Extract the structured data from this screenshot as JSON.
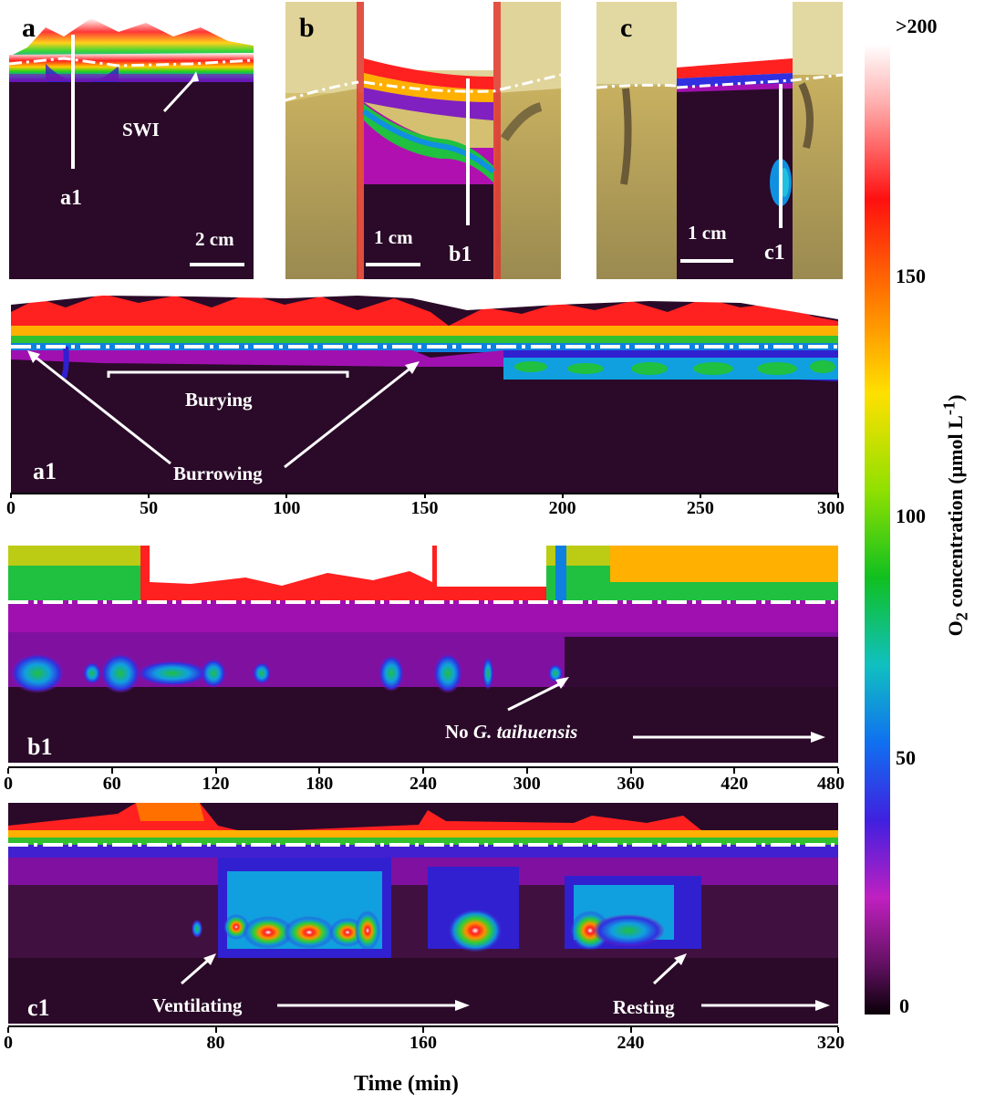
{
  "panels": {
    "a": {
      "letter": "a",
      "swi_label": "SWI",
      "profile_label": "a1",
      "scale": "2 cm"
    },
    "b": {
      "letter": "b",
      "profile_label": "b1",
      "scale": "1 cm"
    },
    "c": {
      "letter": "c",
      "profile_label": "c1",
      "scale": "1 cm"
    }
  },
  "colorbar": {
    "title_pre": "O",
    "title_sub": "2",
    "title_post": " concentration (μmol L",
    "title_sup": "-1",
    "title_end": ")",
    "ticks": [
      ">200",
      "150",
      "100",
      "50",
      "0"
    ]
  },
  "colors": {
    "high": "#ffffff",
    "red": "#e01010",
    "orange": "#ff8a00",
    "yellow": "#f2e600",
    "green": "#10c010",
    "cyan": "#10a8e0",
    "blue": "#2a2ae0",
    "magenta": "#b010b0",
    "dark": "#2a0a28"
  },
  "chart_data": [
    {
      "type": "heatmap",
      "name": "a1",
      "panel_label": "a1",
      "x": [
        0,
        50,
        100,
        150,
        200,
        250,
        300
      ],
      "xlim": [
        0,
        300
      ],
      "xticks": [
        "0",
        "50",
        "100",
        "150",
        "200",
        "250",
        "300"
      ],
      "annotations": [
        "Burying",
        "Burrowing"
      ],
      "zlim": [
        0,
        200
      ]
    },
    {
      "type": "heatmap",
      "name": "b1",
      "panel_label": "b1",
      "xlim": [
        0,
        480
      ],
      "xticks": [
        "0",
        "60",
        "120",
        "180",
        "240",
        "300",
        "360",
        "420",
        "480"
      ],
      "annotations": [
        "No ",
        "G. taihuensis"
      ],
      "zlim": [
        0,
        200
      ]
    },
    {
      "type": "heatmap",
      "name": "c1",
      "panel_label": "c1",
      "xlim": [
        0,
        320
      ],
      "xticks": [
        "0",
        "80",
        "160",
        "240",
        "320"
      ],
      "annotations": [
        "Ventilating",
        "Resting"
      ],
      "xlabel": "Time (min)",
      "zlim": [
        0,
        200
      ]
    }
  ]
}
